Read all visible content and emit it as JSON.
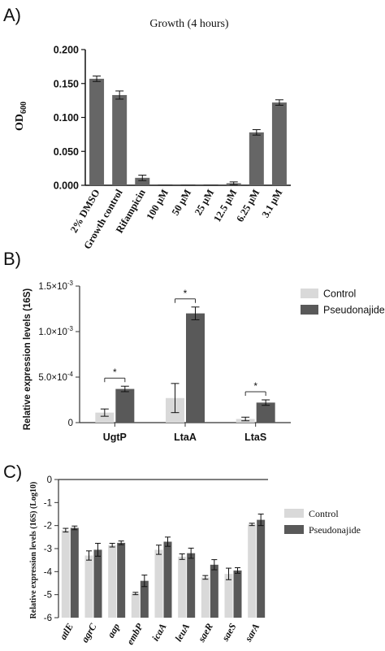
{
  "panels": {
    "a": "A)",
    "b": "B)",
    "c": "C)"
  },
  "chart_data": [
    {
      "type": "bar",
      "title": "Growth (4 hours)",
      "ylabel_main": "OD",
      "ylabel_sub": "600",
      "categories": [
        "2% DMSO",
        "Growth control",
        "Rifampicin",
        "100 μM",
        "50 μM",
        "25 μM",
        "12.5 μM",
        "6.25 μM",
        "3.1 μM"
      ],
      "values": [
        0.157,
        0.133,
        0.011,
        0.0,
        0.0,
        0.0,
        0.003,
        0.078,
        0.122
      ],
      "errors": [
        0.004,
        0.006,
        0.004,
        0.0,
        0.0,
        0.0,
        0.002,
        0.004,
        0.004
      ],
      "ylim": [
        0,
        0.2
      ],
      "yticks": [
        "0.000",
        "0.050",
        "0.100",
        "0.150",
        "0.200"
      ],
      "color": "#666666"
    },
    {
      "type": "bar",
      "ylabel": "Relative expression levels (16S)",
      "categories": [
        "UgtP",
        "LtaA",
        "LtaS"
      ],
      "series": [
        {
          "name": "Control",
          "values": [
            0.00011,
            0.00027,
            4e-05
          ],
          "errors": [
            4e-05,
            0.00016,
            2e-05
          ],
          "color": "#d9d9d9"
        },
        {
          "name": "Pseudonajide",
          "values": [
            0.00037,
            0.0012,
            0.00022
          ],
          "errors": [
            3e-05,
            7e-05,
            3e-05
          ],
          "color": "#595959"
        }
      ],
      "ylim": [
        0,
        0.0015
      ],
      "yticks": [
        {
          "value": 0,
          "mantissa": "0",
          "exp": ""
        },
        {
          "value": 0.0005,
          "mantissa": "5.0×10",
          "exp": "-4"
        },
        {
          "value": 0.001,
          "mantissa": "1.0×10",
          "exp": "-3"
        },
        {
          "value": 0.0015,
          "mantissa": "1.5×10",
          "exp": "-3"
        }
      ],
      "significance": "*",
      "legend_position": "top-right"
    },
    {
      "type": "bar",
      "ylabel": "Relative expression levels (16S) (Log10)",
      "categories": [
        "atlE",
        "agrC",
        "aap",
        "embP",
        "icaA",
        "leuA",
        "saeR",
        "saeS",
        "sarA"
      ],
      "series": [
        {
          "name": "Control",
          "values": [
            -2.2,
            -3.3,
            -2.85,
            -4.95,
            -3.05,
            -3.35,
            -4.25,
            -4.1,
            -1.95
          ],
          "errors": [
            0.08,
            0.2,
            0.08,
            0.05,
            0.2,
            0.12,
            0.08,
            0.25,
            0.05
          ],
          "color": "#d9d9d9"
        },
        {
          "name": "Pseudonajide",
          "values": [
            -2.1,
            -3.05,
            -2.75,
            -4.4,
            -2.7,
            -3.2,
            -3.7,
            -3.95,
            -1.75
          ],
          "errors": [
            0.08,
            0.28,
            0.08,
            0.25,
            0.2,
            0.22,
            0.22,
            0.12,
            0.25
          ],
          "color": "#595959"
        }
      ],
      "ylim": [
        -6,
        0
      ],
      "yticks": [
        "0",
        "-1",
        "-2",
        "-3",
        "-4",
        "-5",
        "-6"
      ],
      "legend_position": "top-right"
    }
  ]
}
